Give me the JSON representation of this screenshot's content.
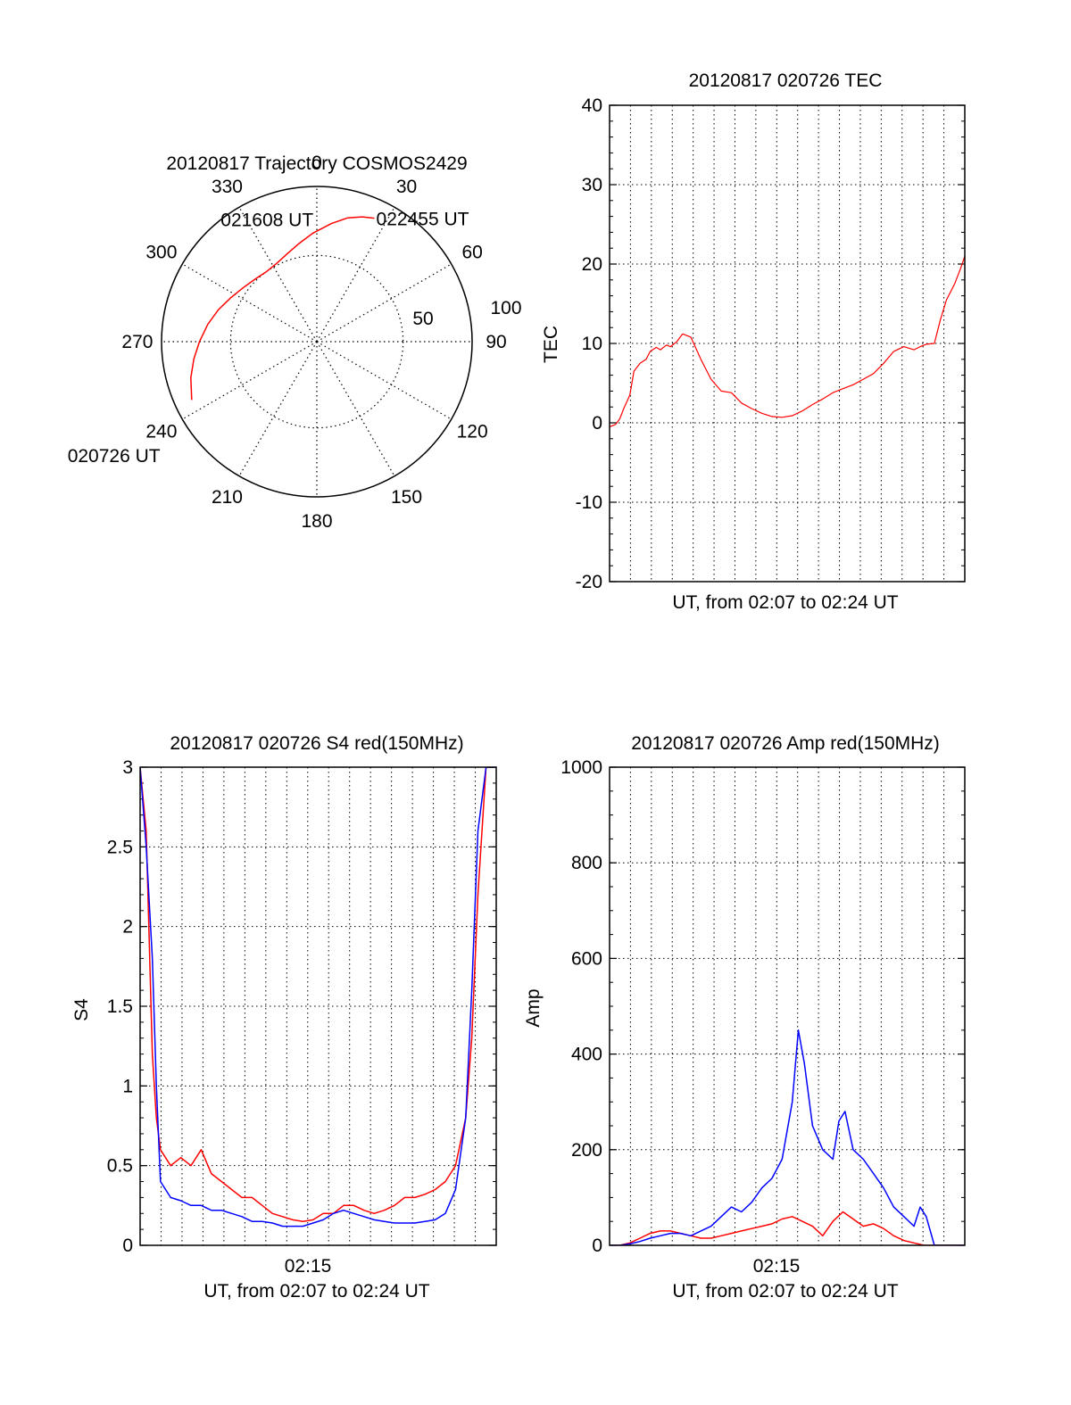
{
  "colors": {
    "red": "#ff0000",
    "blue": "#0000ff",
    "axis": "#000000",
    "grid": "#000000"
  },
  "chart_data": [
    {
      "type": "polar",
      "title": "20120817 Trajectory COSMOS2429",
      "angle_labels": [
        "0",
        "30",
        "60",
        "90",
        "120",
        "150",
        "180",
        "210",
        "240",
        "270",
        "300",
        "330"
      ],
      "radius_labels": [
        "50",
        "100"
      ],
      "series": [
        {
          "color": "red",
          "points": [
            {
              "az": 245,
              "zenith": 80
            },
            {
              "az": 254,
              "zenith": 76
            },
            {
              "az": 262,
              "zenith": 72
            },
            {
              "az": 270,
              "zenith": 68
            },
            {
              "az": 279,
              "zenith": 64
            },
            {
              "az": 288,
              "zenith": 60
            },
            {
              "az": 297,
              "zenith": 56
            },
            {
              "az": 306,
              "zenith": 53
            },
            {
              "az": 315,
              "zenith": 51
            },
            {
              "az": 324,
              "zenith": 50
            },
            {
              "az": 333,
              "zenith": 51
            },
            {
              "az": 342,
              "zenith": 54
            },
            {
              "az": 350,
              "zenith": 58
            },
            {
              "az": 358,
              "zenith": 63
            },
            {
              "az": 7,
              "zenith": 69
            },
            {
              "az": 14,
              "zenith": 74
            },
            {
              "az": 20,
              "zenith": 77
            },
            {
              "az": 25,
              "zenith": 79
            }
          ]
        }
      ],
      "annotations": [
        {
          "text": "022455 UT",
          "az": 25,
          "zenith": 79
        },
        {
          "text": "021608 UT",
          "az": 326,
          "zenith": 46
        },
        {
          "text": "020726 UT",
          "az": 246,
          "zenith": 80
        }
      ]
    },
    {
      "type": "line",
      "title": "20120817 020726 TEC",
      "xlabel": "UT, from 02:07 to 02:24 UT",
      "ylabel": "TEC",
      "ylim": [
        -20,
        40
      ],
      "yticks": [
        "-20",
        "-10",
        "0",
        "10",
        "20",
        "30",
        "40"
      ],
      "xlim": [
        0,
        17.5
      ],
      "series": [
        {
          "color": "red",
          "x": [
            0.0,
            0.3,
            0.5,
            0.7,
            1.0,
            1.2,
            1.5,
            1.8,
            2.0,
            2.3,
            2.5,
            2.8,
            3.0,
            3.3,
            3.6,
            4.0,
            4.5,
            5.0,
            5.5,
            6.0,
            6.5,
            7.0,
            7.5,
            8.0,
            8.5,
            9.0,
            9.5,
            10.0,
            10.5,
            11.0,
            11.5,
            12.0,
            12.5,
            13.0,
            13.5,
            14.0,
            14.5,
            15.0,
            15.3,
            15.6,
            16.0,
            16.3,
            16.6,
            17.0,
            17.3,
            17.5
          ],
          "y": [
            -0.5,
            -0.2,
            0.5,
            1.8,
            3.5,
            6.5,
            7.5,
            8.0,
            9.0,
            9.5,
            9.2,
            9.8,
            9.6,
            10.2,
            11.2,
            10.8,
            8.0,
            5.5,
            4.0,
            3.8,
            2.5,
            1.8,
            1.2,
            0.8,
            0.7,
            0.9,
            1.5,
            2.3,
            3.0,
            3.8,
            4.3,
            4.8,
            5.5,
            6.2,
            7.5,
            9.0,
            9.6,
            9.2,
            9.6,
            9.9,
            10.0,
            13.0,
            15.5,
            17.5,
            19.5,
            21.0
          ]
        }
      ]
    },
    {
      "type": "line",
      "title": "20120817 020726 S4 red(150MHz)",
      "xlabel": "UT, from 02:07 to 02:24 UT",
      "xtick_labels": [
        "02:15"
      ],
      "ylabel": "S4",
      "ylim": [
        0,
        3
      ],
      "yticks": [
        "0",
        "0.5",
        "1",
        "1.5",
        "2",
        "2.5",
        "3"
      ],
      "xlim": [
        0,
        17.5
      ],
      "series": [
        {
          "color": "red",
          "x": [
            0.0,
            0.3,
            0.6,
            0.8,
            1.0,
            1.5,
            2.0,
            2.5,
            3.0,
            3.5,
            4.0,
            4.5,
            5.0,
            5.5,
            6.0,
            6.5,
            7.0,
            7.5,
            8.0,
            8.5,
            9.0,
            9.5,
            10.0,
            10.5,
            11.0,
            11.5,
            12.0,
            12.5,
            13.0,
            13.5,
            14.0,
            14.5,
            15.0,
            15.5,
            16.0,
            16.3,
            16.6,
            17.0,
            17.5
          ],
          "y": [
            3.0,
            2.6,
            1.2,
            0.8,
            0.6,
            0.5,
            0.55,
            0.5,
            0.6,
            0.45,
            0.4,
            0.35,
            0.3,
            0.3,
            0.25,
            0.2,
            0.18,
            0.16,
            0.15,
            0.16,
            0.2,
            0.2,
            0.25,
            0.25,
            0.22,
            0.2,
            0.22,
            0.25,
            0.3,
            0.3,
            0.32,
            0.35,
            0.4,
            0.5,
            0.8,
            1.3,
            2.2,
            3.0,
            3.0
          ]
        },
        {
          "color": "blue",
          "x": [
            0.0,
            0.3,
            0.6,
            0.8,
            1.0,
            1.5,
            2.0,
            2.5,
            3.0,
            3.5,
            4.0,
            4.5,
            5.0,
            5.5,
            6.0,
            6.5,
            7.0,
            7.5,
            8.0,
            8.5,
            9.0,
            9.5,
            10.0,
            10.5,
            11.0,
            11.5,
            12.0,
            12.5,
            13.0,
            13.5,
            14.0,
            14.5,
            15.0,
            15.5,
            16.0,
            16.3,
            16.6,
            17.0,
            17.5
          ],
          "y": [
            3.0,
            2.5,
            1.8,
            1.0,
            0.4,
            0.3,
            0.28,
            0.25,
            0.25,
            0.22,
            0.22,
            0.2,
            0.18,
            0.15,
            0.15,
            0.14,
            0.12,
            0.12,
            0.12,
            0.14,
            0.16,
            0.2,
            0.22,
            0.2,
            0.18,
            0.16,
            0.15,
            0.14,
            0.14,
            0.14,
            0.15,
            0.16,
            0.2,
            0.35,
            0.8,
            1.6,
            2.6,
            3.0,
            3.0
          ]
        }
      ]
    },
    {
      "type": "line",
      "title": "20120817 020726 Amp red(150MHz)",
      "xlabel": "UT, from 02:07 to 02:24 UT",
      "xtick_labels": [
        "02:15"
      ],
      "ylabel": "Amp",
      "ylim": [
        0,
        1000
      ],
      "yticks": [
        "0",
        "200",
        "400",
        "600",
        "800",
        "1000"
      ],
      "xlim": [
        0,
        17.5
      ],
      "series": [
        {
          "color": "red",
          "x": [
            0.0,
            0.5,
            1.0,
            1.5,
            2.0,
            2.5,
            3.0,
            3.5,
            4.0,
            4.5,
            5.0,
            5.5,
            6.0,
            6.5,
            7.0,
            7.5,
            8.0,
            8.5,
            9.0,
            9.5,
            10.0,
            10.5,
            11.0,
            11.5,
            12.0,
            12.5,
            13.0,
            13.5,
            14.0,
            14.5,
            15.0,
            15.5,
            16.0,
            17.5
          ],
          "y": [
            0,
            0,
            5,
            15,
            25,
            30,
            30,
            25,
            20,
            15,
            15,
            20,
            25,
            30,
            35,
            40,
            45,
            55,
            60,
            50,
            40,
            20,
            50,
            70,
            55,
            40,
            45,
            35,
            20,
            10,
            5,
            0,
            0,
            0
          ]
        },
        {
          "color": "blue",
          "x": [
            0.0,
            0.5,
            1.0,
            1.5,
            2.0,
            2.5,
            3.0,
            3.5,
            4.0,
            4.5,
            5.0,
            5.5,
            6.0,
            6.5,
            7.0,
            7.5,
            8.0,
            8.5,
            9.0,
            9.3,
            9.6,
            10.0,
            10.5,
            11.0,
            11.3,
            11.6,
            12.0,
            12.5,
            13.0,
            13.5,
            14.0,
            14.5,
            15.0,
            15.3,
            15.6,
            16.0,
            17.5
          ],
          "y": [
            0,
            0,
            3,
            8,
            15,
            20,
            25,
            25,
            20,
            30,
            40,
            60,
            80,
            70,
            90,
            120,
            140,
            180,
            300,
            450,
            380,
            250,
            200,
            180,
            260,
            280,
            200,
            180,
            150,
            120,
            80,
            60,
            40,
            80,
            60,
            0,
            0
          ]
        }
      ]
    }
  ]
}
